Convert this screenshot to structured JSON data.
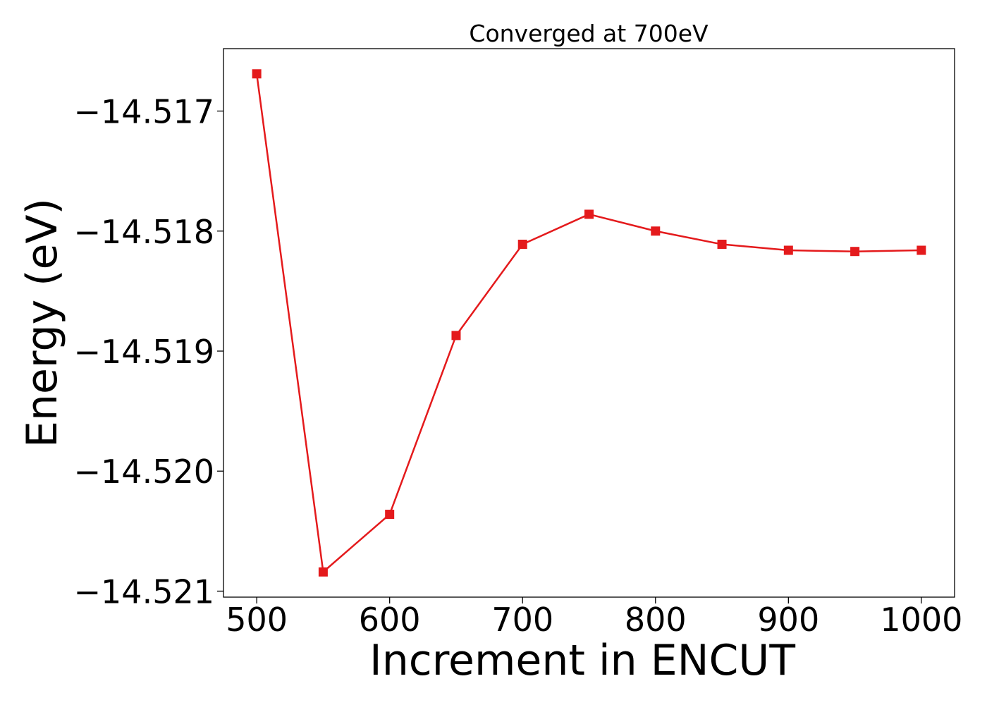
{
  "chart_data": {
    "type": "line",
    "title": "Converged at 700eV",
    "xlabel": "Increment in ENCUT",
    "ylabel": "Energy (eV)",
    "x": [
      500,
      550,
      600,
      650,
      700,
      750,
      800,
      850,
      900,
      950,
      1000
    ],
    "series": [
      {
        "values": [
          -14.51669,
          -14.52084,
          -14.52036,
          -14.51887,
          -14.51811,
          -14.51786,
          -14.518,
          -14.51811,
          -14.51816,
          -14.51817,
          -14.51816
        ],
        "color": "#e41a1c",
        "marker": "square"
      }
    ],
    "xticks": [
      500,
      600,
      700,
      800,
      900,
      1000
    ],
    "xtick_labels": [
      "500",
      "600",
      "700",
      "800",
      "900",
      "1000"
    ],
    "yticks": [
      -14.517,
      -14.518,
      -14.519,
      -14.52,
      -14.521
    ],
    "ytick_labels": [
      "−14.517",
      "−14.518",
      "−14.519",
      "−14.520",
      "−14.521"
    ],
    "xlim": [
      475,
      1025
    ],
    "ylim": [
      -14.52105,
      -14.51648
    ],
    "grid": false,
    "legend": "none"
  }
}
